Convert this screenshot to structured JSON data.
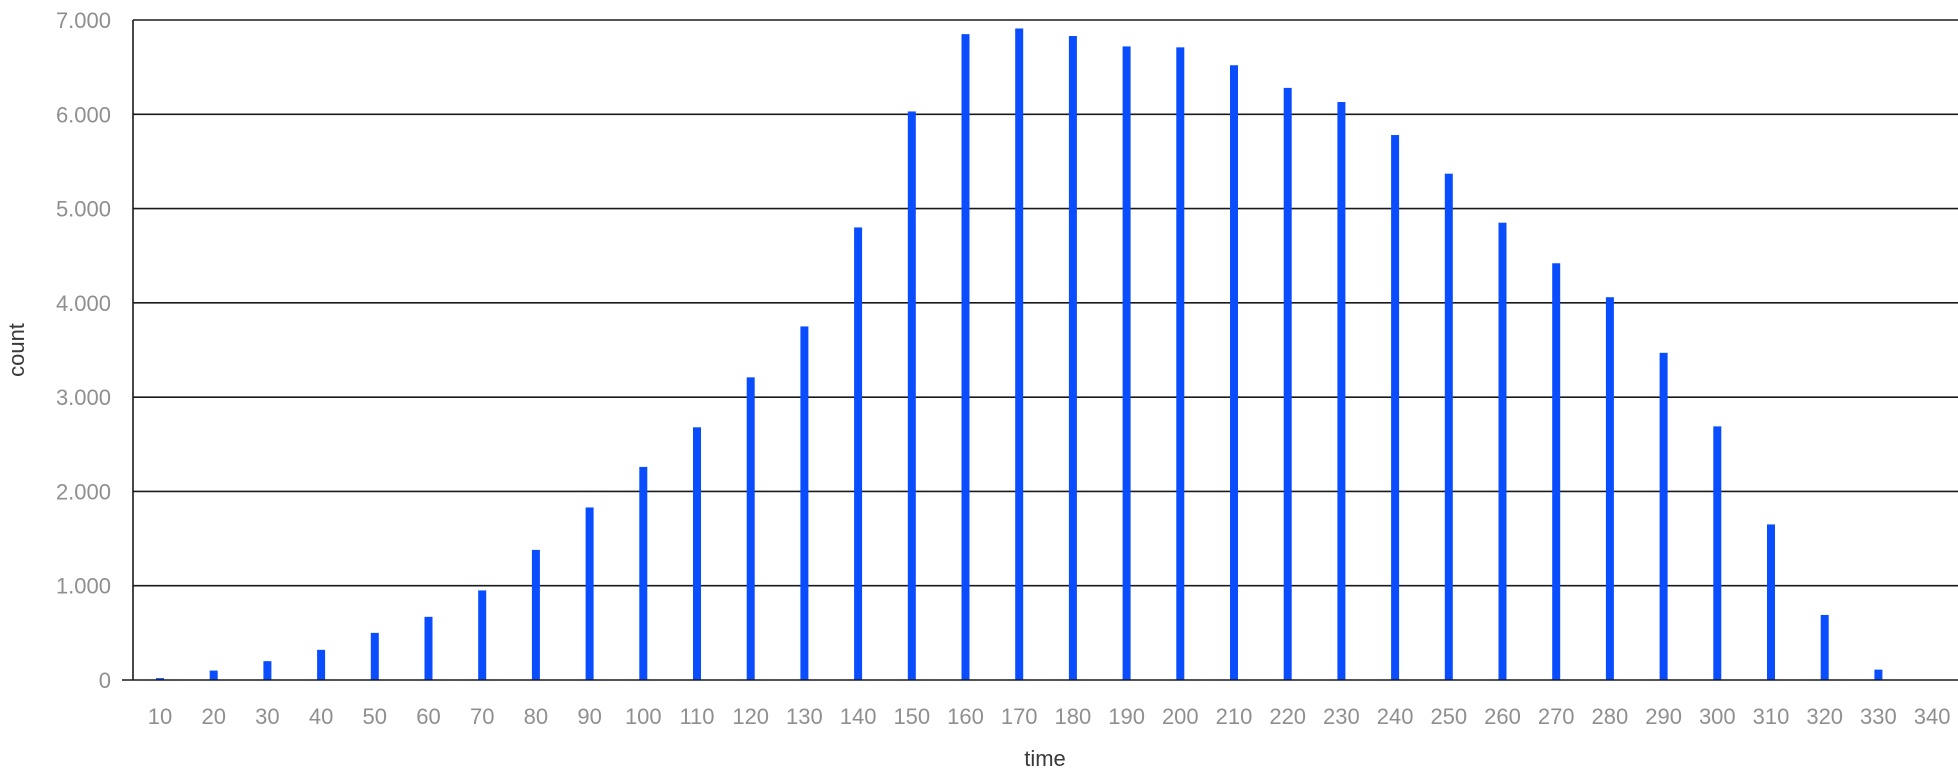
{
  "chart_data": {
    "type": "bar",
    "title": "",
    "xlabel": "time",
    "ylabel": "count",
    "categories": [
      "10",
      "20",
      "30",
      "40",
      "50",
      "60",
      "70",
      "80",
      "90",
      "100",
      "110",
      "120",
      "130",
      "140",
      "150",
      "160",
      "170",
      "180",
      "190",
      "200",
      "210",
      "220",
      "230",
      "240",
      "250",
      "260",
      "270",
      "280",
      "290",
      "300",
      "310",
      "320",
      "330",
      "340"
    ],
    "values": [
      20,
      100,
      200,
      320,
      500,
      670,
      950,
      1380,
      1830,
      2260,
      2680,
      3210,
      3750,
      4800,
      6030,
      6850,
      6910,
      6830,
      6720,
      6710,
      6520,
      6280,
      6130,
      5780,
      5370,
      4850,
      4420,
      4060,
      3470,
      2690,
      1650,
      690,
      110,
      0
    ],
    "ylim": [
      0,
      7000
    ],
    "yticks": [
      0,
      1000,
      2000,
      3000,
      4000,
      5000,
      6000,
      7000
    ],
    "ytick_labels": [
      "0",
      "1.000",
      "2.000",
      "3.000",
      "4.000",
      "5.000",
      "6.000",
      "7.000"
    ],
    "grid": true,
    "bar_color": "#0a4dff"
  }
}
